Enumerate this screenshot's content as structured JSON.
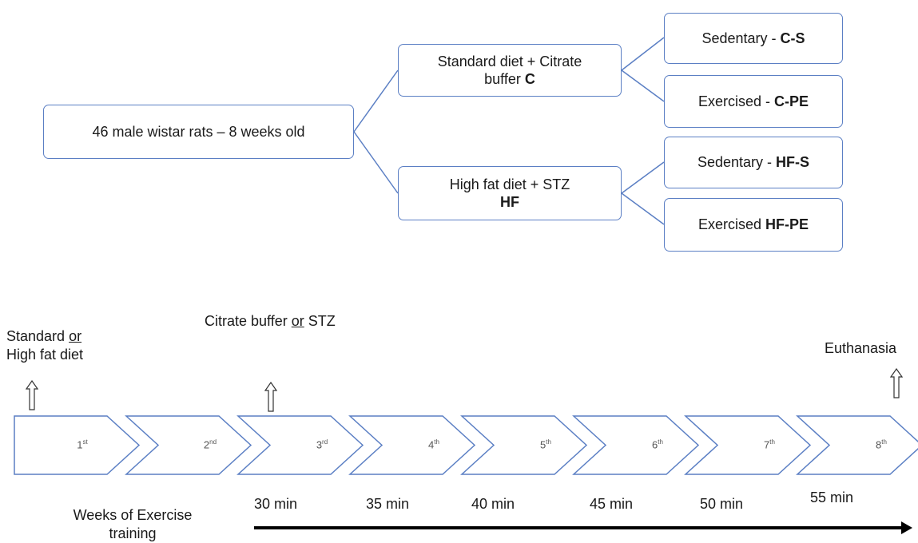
{
  "root": {
    "label": "46 male wistar rats – 8 weeks old"
  },
  "groups": [
    {
      "line1": "Standard diet + Citrate",
      "line2": "buffer ",
      "code": "C",
      "subgroups": [
        {
          "prefix": "Sedentary - ",
          "code": "C-S"
        },
        {
          "prefix": "Exercised - ",
          "code": "C-PE"
        }
      ]
    },
    {
      "line1": "High fat diet + STZ",
      "line2": "",
      "code": "HF",
      "subgroups": [
        {
          "prefix": "Sedentary - ",
          "code": "HF-S"
        },
        {
          "prefix": "Exercised ",
          "code": "HF-PE"
        }
      ]
    }
  ],
  "timeline": {
    "weeks": [
      {
        "num": "1",
        "sup": "st"
      },
      {
        "num": "2",
        "sup": "nd"
      },
      {
        "num": "3",
        "sup": "rd"
      },
      {
        "num": "4",
        "sup": "th"
      },
      {
        "num": "5",
        "sup": "th"
      },
      {
        "num": "6",
        "sup": "th"
      },
      {
        "num": "7",
        "sup": "th"
      },
      {
        "num": "8",
        "sup": "th"
      }
    ],
    "durations": [
      "30 min",
      "35 min",
      "40 min",
      "45 min",
      "50 min",
      "55 min"
    ],
    "events": {
      "diet_a": "Standard ",
      "diet_or": "or",
      "diet_b": "High fat diet",
      "inj_a": "Citrate buffer ",
      "inj_or": "or",
      "inj_b": " STZ",
      "end": "Euthanasia"
    },
    "axis_label_1": "Weeks of Exercise",
    "axis_label_2": "training"
  }
}
